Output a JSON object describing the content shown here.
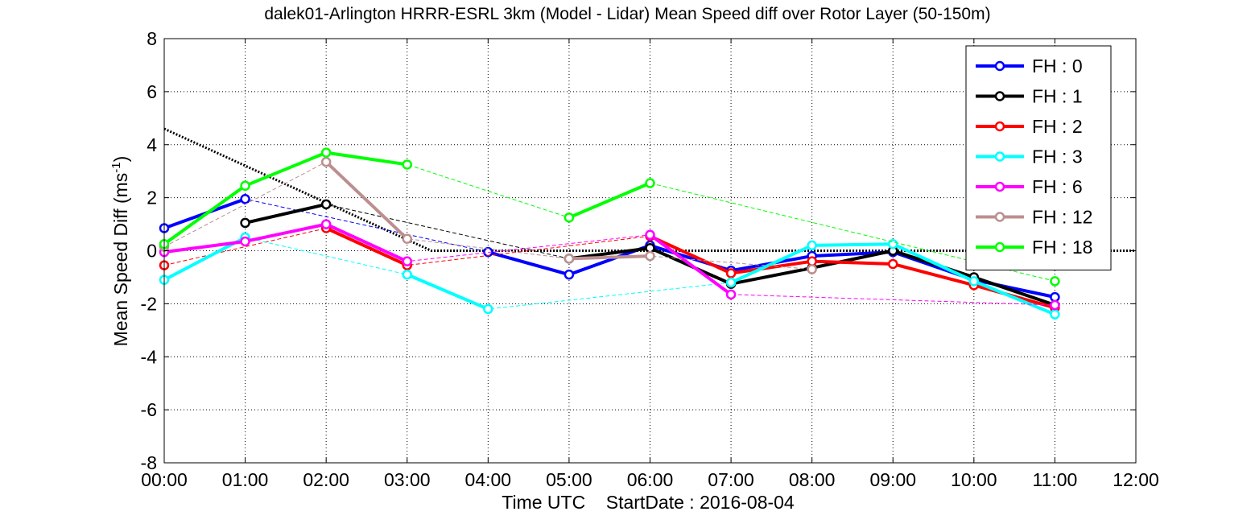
{
  "chart_data": {
    "type": "line",
    "title": "dalek01-Arlington HRRR-ESRL 3km (Model - Lidar) Mean Speed diff over Rotor Layer (50-150m)",
    "xlabel": "Time UTC",
    "xlabel_extra": "StartDate : 2016-08-04",
    "ylabel_main": "Mean Speed Diff (ms",
    "ylabel_sup": "-1",
    "ylabel_end": ")",
    "x_ticks": [
      "00:00",
      "01:00",
      "02:00",
      "03:00",
      "04:00",
      "05:00",
      "06:00",
      "07:00",
      "08:00",
      "09:00",
      "10:00",
      "11:00",
      "12:00"
    ],
    "y_ticks": [
      "8",
      "6",
      "4",
      "2",
      "0",
      "-2",
      "-4",
      "-6",
      "-8"
    ],
    "xlim": [
      0,
      12
    ],
    "ylim": [
      -8,
      8
    ],
    "grid": true,
    "legend_position": "top-right",
    "reference_line": {
      "type": "dotted",
      "color": "#000000",
      "points": [
        [
          0,
          4.6
        ],
        [
          3.3,
          0
        ],
        [
          12,
          0
        ]
      ]
    },
    "series": [
      {
        "name": "FH : 0",
        "color": "#0000ff",
        "points": [
          [
            0,
            0.85
          ],
          [
            1,
            1.95
          ],
          [
            2,
            null
          ],
          [
            3,
            null
          ],
          [
            4,
            -0.05
          ],
          [
            5,
            -0.9
          ],
          [
            6,
            0.2
          ],
          [
            7,
            -0.75
          ],
          [
            8,
            -0.2
          ],
          [
            9,
            -0.05
          ],
          [
            10,
            -1.1
          ],
          [
            11,
            -1.75
          ]
        ]
      },
      {
        "name": "FH : 1",
        "color": "#000000",
        "points": [
          [
            1,
            1.05
          ],
          [
            2,
            1.75
          ],
          [
            3,
            null
          ],
          [
            4,
            null
          ],
          [
            5,
            -0.3
          ],
          [
            6,
            0.1
          ],
          [
            7,
            -1.25
          ],
          [
            8,
            -0.65
          ],
          [
            9,
            0.0
          ],
          [
            10,
            -1.0
          ],
          [
            11,
            -2.05
          ]
        ]
      },
      {
        "name": "FH : 2",
        "color": "#ff0000",
        "points": [
          [
            0,
            -0.55
          ],
          [
            1,
            null
          ],
          [
            2,
            0.85
          ],
          [
            3,
            -0.55
          ],
          [
            4,
            null
          ],
          [
            5,
            null
          ],
          [
            6,
            0.55
          ],
          [
            7,
            -0.85
          ],
          [
            8,
            -0.4
          ],
          [
            9,
            -0.5
          ],
          [
            10,
            -1.3
          ],
          [
            11,
            -2.15
          ]
        ]
      },
      {
        "name": "FH : 3",
        "color": "#00ffff",
        "points": [
          [
            0,
            -1.1
          ],
          [
            1,
            0.5
          ],
          [
            2,
            null
          ],
          [
            3,
            -0.9
          ],
          [
            4,
            -2.2
          ],
          [
            5,
            null
          ],
          [
            6,
            null
          ],
          [
            7,
            -1.2
          ],
          [
            8,
            0.2
          ],
          [
            9,
            0.25
          ],
          [
            10,
            -1.15
          ],
          [
            11,
            -2.4
          ]
        ]
      },
      {
        "name": "FH : 6",
        "color": "#ff00ff",
        "points": [
          [
            0,
            -0.05
          ],
          [
            1,
            0.35
          ],
          [
            2,
            1.0
          ],
          [
            3,
            -0.4
          ],
          [
            4,
            null
          ],
          [
            5,
            null
          ],
          [
            6,
            0.6
          ],
          [
            7,
            -1.65
          ],
          [
            8,
            null
          ],
          [
            9,
            null
          ],
          [
            10,
            null
          ],
          [
            11,
            -2.05
          ]
        ]
      },
      {
        "name": "FH : 12",
        "color": "#bc8f8f",
        "points": [
          [
            0,
            0.15
          ],
          [
            1,
            null
          ],
          [
            2,
            3.35
          ],
          [
            3,
            0.45
          ],
          [
            4,
            null
          ],
          [
            5,
            -0.3
          ],
          [
            6,
            -0.2
          ],
          [
            7,
            null
          ],
          [
            8,
            -0.7
          ],
          [
            9,
            null
          ],
          [
            10,
            null
          ],
          [
            11,
            null
          ]
        ]
      },
      {
        "name": "FH : 18",
        "color": "#00ff00",
        "points": [
          [
            0,
            0.25
          ],
          [
            1,
            2.45
          ],
          [
            2,
            3.7
          ],
          [
            3,
            3.25
          ],
          [
            4,
            null
          ],
          [
            5,
            1.25
          ],
          [
            6,
            2.55
          ],
          [
            7,
            null
          ],
          [
            8,
            null
          ],
          [
            9,
            null
          ],
          [
            10,
            null
          ],
          [
            11,
            -1.15
          ]
        ]
      }
    ]
  }
}
